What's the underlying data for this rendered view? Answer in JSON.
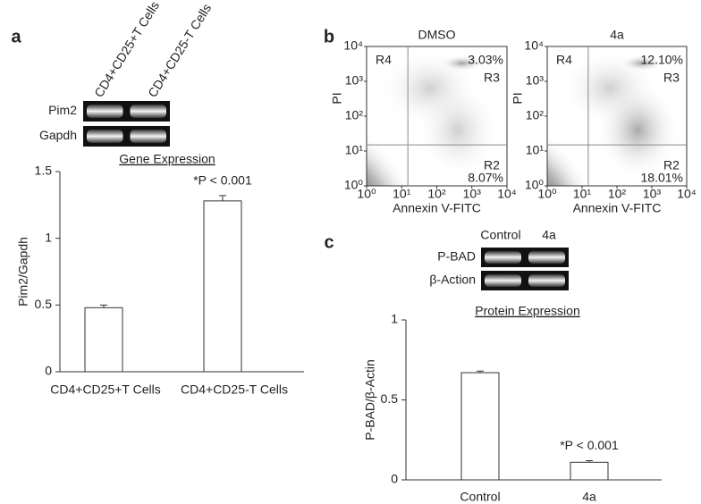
{
  "chart_data": [
    {
      "type": "bar",
      "panel": "a",
      "title": "Gene Expression",
      "ylabel": "Pim2/Gapdh",
      "categories": [
        "CD4+CD25+T Cells",
        "CD4+CD25-T Cells"
      ],
      "values": [
        0.48,
        1.28
      ],
      "errors": [
        0.02,
        0.04
      ],
      "color": "#ffffff",
      "ylim": [
        0,
        1.5
      ],
      "yticks": [
        0,
        0.5,
        1,
        1.5
      ],
      "annotation": "*P < 0.001",
      "blot": {
        "rows": [
          "Pim2",
          "Gapdh"
        ]
      }
    },
    {
      "type": "flow",
      "panel": "b",
      "title": "DMSO",
      "xlabel": "Annexin V-FITC",
      "ylabel": "PI",
      "xlog": true,
      "ylog": true,
      "xlim": [
        1,
        10000
      ],
      "ylim": [
        1,
        10000
      ],
      "xticks": [
        {
          "value": 1,
          "label": "10⁰"
        },
        {
          "value": 10,
          "label": "10¹"
        },
        {
          "value": 100,
          "label": "10²"
        },
        {
          "value": 1000,
          "label": "10³"
        },
        {
          "value": 10000,
          "label": "10⁴"
        }
      ],
      "yticks": [
        {
          "value": 1,
          "label": "10⁰"
        },
        {
          "value": 10,
          "label": "10¹"
        },
        {
          "value": 100,
          "label": "10²"
        },
        {
          "value": 1000,
          "label": "10³"
        },
        {
          "value": 10000,
          "label": "10⁴"
        }
      ],
      "gate": [
        15,
        15
      ],
      "regions": [
        "R4",
        "R3",
        "R2"
      ],
      "values": [
        3.03,
        8.07
      ],
      "value_labels": [
        "3.03%",
        "8.07%"
      ]
    },
    {
      "type": "flow",
      "title": "4a",
      "xlabel": "Annexin V-FITC",
      "ylabel": "PI",
      "xlog": true,
      "ylog": true,
      "xlim": [
        1,
        10000
      ],
      "ylim": [
        1,
        10000
      ],
      "xticks": [
        {
          "value": 1,
          "label": "10⁰"
        },
        {
          "value": 10,
          "label": "10¹"
        },
        {
          "value": 100,
          "label": "10²"
        },
        {
          "value": 1000,
          "label": "10³"
        },
        {
          "value": 10000,
          "label": "10⁴"
        }
      ],
      "yticks": [
        {
          "value": 1,
          "label": "10⁰"
        },
        {
          "value": 10,
          "label": "10¹"
        },
        {
          "value": 100,
          "label": "10²"
        },
        {
          "value": 1000,
          "label": "10³"
        },
        {
          "value": 10000,
          "label": "10⁴"
        }
      ],
      "gate": [
        15,
        15
      ],
      "regions": [
        "R4",
        "R3",
        "R2"
      ],
      "values": [
        12.1,
        18.01
      ],
      "value_labels": [
        "12.10%",
        "18.01%"
      ]
    },
    {
      "type": "bar",
      "panel": "c",
      "title": "Protein Expression",
      "ylabel": "P-BAD/β-Actin",
      "categories": [
        "Control",
        "4a"
      ],
      "values": [
        0.67,
        0.11
      ],
      "errors": [
        0.01,
        0.01
      ],
      "color": "#ffffff",
      "ylim": [
        0,
        1
      ],
      "yticks": [
        0,
        0.5,
        1
      ],
      "annotation": "*P < 0.001",
      "blot": {
        "rows": [
          "P-BAD",
          "β-Action"
        ]
      }
    }
  ]
}
